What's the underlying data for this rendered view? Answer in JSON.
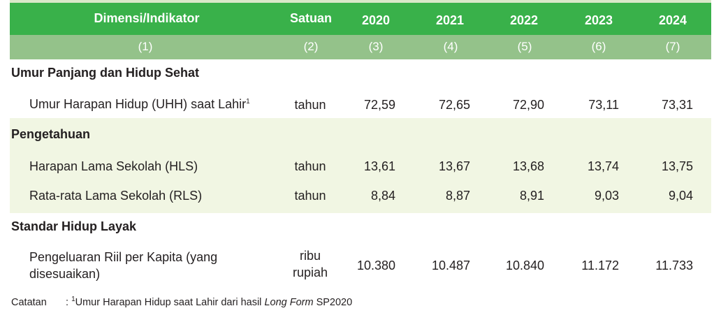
{
  "table": {
    "headers": {
      "indicator": "Dimensi/Indikator",
      "unit": "Satuan",
      "years": [
        "2020",
        "2021",
        "2022",
        "2023",
        "2024"
      ]
    },
    "column_numbers": [
      "(1)",
      "(2)",
      "(3)",
      "(4)",
      "(5)",
      "(6)",
      "(7)"
    ],
    "sections": [
      {
        "title": "Umur Panjang dan Hidup Sehat",
        "rows": [
          {
            "label": "Umur Harapan Hidup (UHH) saat Lahir",
            "label_sup": "1",
            "unit": "tahun",
            "values": [
              "72,59",
              "72,65",
              "72,90",
              "73,11",
              "73,31"
            ]
          }
        ]
      },
      {
        "title": "Pengetahuan",
        "rows": [
          {
            "label": "Harapan Lama Sekolah (HLS)",
            "unit": "tahun",
            "values": [
              "13,61",
              "13,67",
              "13,68",
              "13,74",
              "13,75"
            ]
          },
          {
            "label": "Rata-rata Lama Sekolah (RLS)",
            "unit": "tahun",
            "values": [
              "8,84",
              "8,87",
              "8,91",
              "9,03",
              "9,04"
            ]
          }
        ]
      },
      {
        "title": "Standar Hidup Layak",
        "rows": [
          {
            "label_line1": "Pengeluaran Riil per Kapita (yang",
            "label_line2": "disesuaikan)",
            "unit_line1": "ribu",
            "unit_line2": "rupiah",
            "values": [
              "10.380",
              "10.487",
              "10.840",
              "11.172",
              "11.733"
            ]
          }
        ]
      }
    ]
  },
  "footnote": {
    "label": "Catatan",
    "separator": ":",
    "sup": "1",
    "text_before": "Umur Harapan Hidup saat Lahir dari hasil ",
    "text_italic": "Long Form",
    "text_after": " SP2020"
  },
  "colors": {
    "header_bg": "#39b14a",
    "column_number_bg": "#94c28a",
    "band_bg": "#f1f6e3"
  }
}
